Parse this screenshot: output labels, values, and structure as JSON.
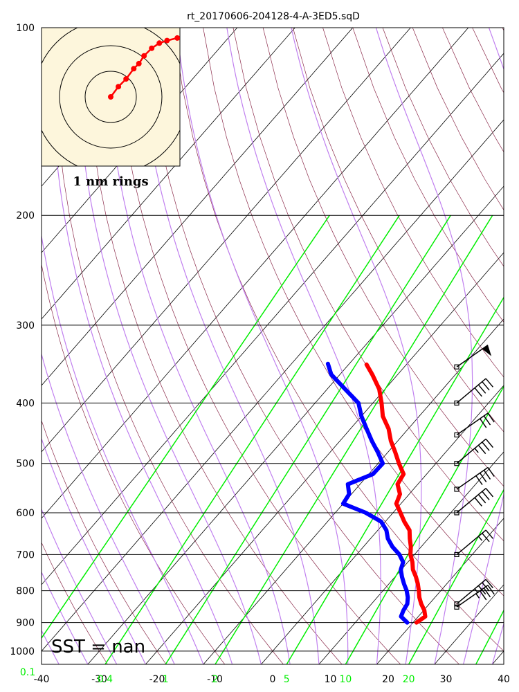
{
  "chart_data": {
    "type": "skew-t log-p sounding",
    "title": "rt_20170606-204128-4-A-3ED5.sqD",
    "x_axis": {
      "label": "",
      "range": [
        -40,
        40
      ],
      "tick_labels": [
        "-40",
        "-30",
        "-20",
        "-10",
        "0",
        "10",
        "20",
        "30",
        "40"
      ]
    },
    "y_axis": {
      "label": "",
      "scale": "log",
      "range": [
        1050,
        100
      ],
      "tick_labels": [
        "100",
        "200",
        "300",
        "400",
        "500",
        "600",
        "700",
        "800",
        "900",
        "1000"
      ]
    },
    "mixing_ratio_labels": [
      {
        "text": "0.1",
        "value": 0.1
      },
      {
        "text": "0.4",
        "value": 0.4
      },
      {
        "text": "1",
        "value": 1
      },
      {
        "text": "2",
        "value": 2
      },
      {
        "text": "5",
        "value": 5
      },
      {
        "text": "10",
        "value": 10
      },
      {
        "text": "20",
        "value": 20
      }
    ],
    "series": [
      {
        "kind": "temperature",
        "color": "#ff0000",
        "points": [
          {
            "p": 900,
            "t": 20.6
          },
          {
            "p": 880,
            "t": 21.2
          },
          {
            "p": 860,
            "t": 20.1
          },
          {
            "p": 840,
            "t": 18.6
          },
          {
            "p": 820,
            "t": 17.3
          },
          {
            "p": 800,
            "t": 16.2
          },
          {
            "p": 780,
            "t": 15.0
          },
          {
            "p": 760,
            "t": 13.6
          },
          {
            "p": 740,
            "t": 12.0
          },
          {
            "p": 720,
            "t": 10.8
          },
          {
            "p": 700,
            "t": 9.3
          },
          {
            "p": 680,
            "t": 8.2
          },
          {
            "p": 660,
            "t": 6.8
          },
          {
            "p": 640,
            "t": 5.5
          },
          {
            "p": 620,
            "t": 3.3
          },
          {
            "p": 600,
            "t": 1.3
          },
          {
            "p": 580,
            "t": -0.8
          },
          {
            "p": 560,
            "t": -1.6
          },
          {
            "p": 540,
            "t": -3.5
          },
          {
            "p": 520,
            "t": -4.0
          },
          {
            "p": 500,
            "t": -6.4
          },
          {
            "p": 480,
            "t": -8.7
          },
          {
            "p": 460,
            "t": -11.2
          },
          {
            "p": 440,
            "t": -13.4
          },
          {
            "p": 420,
            "t": -16.3
          },
          {
            "p": 400,
            "t": -18.5
          },
          {
            "p": 380,
            "t": -21.0
          },
          {
            "p": 360,
            "t": -24.4
          },
          {
            "p": 347,
            "t": -26.9
          }
        ]
      },
      {
        "kind": "dewpoint",
        "color": "#0000ff",
        "points": [
          {
            "p": 900,
            "t": 19.0
          },
          {
            "p": 880,
            "t": 17.0
          },
          {
            "p": 860,
            "t": 16.5
          },
          {
            "p": 840,
            "t": 16.2
          },
          {
            "p": 820,
            "t": 15.3
          },
          {
            "p": 800,
            "t": 14.1
          },
          {
            "p": 780,
            "t": 12.6
          },
          {
            "p": 760,
            "t": 11.2
          },
          {
            "p": 740,
            "t": 9.9
          },
          {
            "p": 720,
            "t": 9.2
          },
          {
            "p": 700,
            "t": 7.4
          },
          {
            "p": 680,
            "t": 5.0
          },
          {
            "p": 660,
            "t": 3.0
          },
          {
            "p": 640,
            "t": 1.5
          },
          {
            "p": 620,
            "t": -0.7
          },
          {
            "p": 600,
            "t": -4.7
          },
          {
            "p": 580,
            "t": -10.0
          },
          {
            "p": 560,
            "t": -10.4
          },
          {
            "p": 540,
            "t": -12.1
          },
          {
            "p": 520,
            "t": -9.3
          },
          {
            "p": 500,
            "t": -9.2
          },
          {
            "p": 480,
            "t": -11.7
          },
          {
            "p": 460,
            "t": -14.5
          },
          {
            "p": 440,
            "t": -17.2
          },
          {
            "p": 420,
            "t": -20.0
          },
          {
            "p": 400,
            "t": -22.5
          },
          {
            "p": 380,
            "t": -26.9
          },
          {
            "p": 360,
            "t": -31.5
          },
          {
            "p": 346,
            "t": -33.7
          }
        ]
      }
    ],
    "wind_barbs": [
      {
        "p": 850,
        "direction_deg": 235,
        "speed_kt": 35
      },
      {
        "p": 840,
        "direction_deg": 230,
        "speed_kt": 35
      },
      {
        "p": 700,
        "direction_deg": 230,
        "speed_kt": 25
      },
      {
        "p": 600,
        "direction_deg": 230,
        "speed_kt": 40
      },
      {
        "p": 550,
        "direction_deg": 235,
        "speed_kt": 40
      },
      {
        "p": 500,
        "direction_deg": 230,
        "speed_kt": 35
      },
      {
        "p": 450,
        "direction_deg": 235,
        "speed_kt": 30
      },
      {
        "p": 400,
        "direction_deg": 230,
        "speed_kt": 40
      },
      {
        "p": 350,
        "direction_deg": 235,
        "speed_kt": 50
      }
    ],
    "hodograph": {
      "label": "1 nm rings",
      "ring_radii_nm": [
        1,
        2,
        3
      ],
      "points_nm": [
        [
          0.0,
          0.0
        ],
        [
          0.3,
          0.4
        ],
        [
          0.6,
          0.7
        ],
        [
          0.9,
          1.1
        ],
        [
          1.1,
          1.3
        ],
        [
          1.3,
          1.6
        ],
        [
          1.6,
          1.9
        ],
        [
          1.9,
          2.1
        ],
        [
          2.2,
          2.2
        ],
        [
          2.6,
          2.3
        ]
      ]
    },
    "annotation": "SST =  nan"
  }
}
